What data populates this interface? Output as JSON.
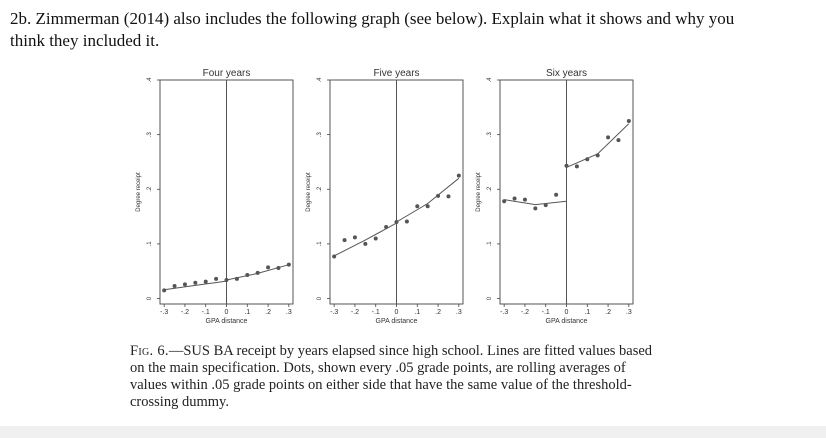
{
  "question": {
    "text": "2b. Zimmerman (2014) also includes the following graph (see below). Explain what it shows and why you think they included it."
  },
  "caption": {
    "label": "Fig. 6.",
    "text": "—SUS BA receipt by years elapsed since high school. Lines are fitted values based on the main specification. Dots, shown every .05 grade points, are rolling averages of values within .05 grade points on either side that have the same value of the threshold-crossing dummy."
  },
  "chart_data": [
    {
      "type": "scatter",
      "title": "Four years",
      "xlabel": "GPA distance",
      "ylabel": "Degree receipt",
      "xticks": [
        "-.3",
        "-.2",
        "-.1",
        "0",
        ".1",
        ".2",
        ".3"
      ],
      "yticks": [
        "0",
        ".1",
        ".2",
        ".3",
        ".4"
      ],
      "xlim": [
        -0.32,
        0.32
      ],
      "ylim": [
        -0.01,
        0.4
      ],
      "threshold": 0,
      "points": [
        {
          "x": -0.3,
          "y": 0.015
        },
        {
          "x": -0.25,
          "y": 0.023
        },
        {
          "x": -0.2,
          "y": 0.026
        },
        {
          "x": -0.15,
          "y": 0.029
        },
        {
          "x": -0.1,
          "y": 0.031
        },
        {
          "x": -0.05,
          "y": 0.036
        },
        {
          "x": 0.0,
          "y": 0.034
        },
        {
          "x": 0.05,
          "y": 0.036
        },
        {
          "x": 0.1,
          "y": 0.043
        },
        {
          "x": 0.15,
          "y": 0.047
        },
        {
          "x": 0.2,
          "y": 0.057
        },
        {
          "x": 0.25,
          "y": 0.056
        },
        {
          "x": 0.3,
          "y": 0.062
        }
      ],
      "fit_left": [
        {
          "x": -0.3,
          "y": 0.016
        },
        {
          "x": -0.15,
          "y": 0.024
        },
        {
          "x": 0.0,
          "y": 0.032
        }
      ],
      "fit_right": [
        {
          "x": 0.0,
          "y": 0.034
        },
        {
          "x": 0.15,
          "y": 0.046
        },
        {
          "x": 0.3,
          "y": 0.062
        }
      ]
    },
    {
      "type": "scatter",
      "title": "Five years",
      "xlabel": "GPA distance",
      "ylabel": "Degree receipt",
      "xticks": [
        "-.3",
        "-.2",
        "-.1",
        "0",
        ".1",
        ".2",
        ".3"
      ],
      "yticks": [
        "0",
        ".1",
        ".2",
        ".3",
        ".4"
      ],
      "xlim": [
        -0.32,
        0.32
      ],
      "ylim": [
        -0.01,
        0.4
      ],
      "threshold": 0,
      "points": [
        {
          "x": -0.3,
          "y": 0.077
        },
        {
          "x": -0.25,
          "y": 0.107
        },
        {
          "x": -0.2,
          "y": 0.112
        },
        {
          "x": -0.15,
          "y": 0.1
        },
        {
          "x": -0.1,
          "y": 0.11
        },
        {
          "x": -0.05,
          "y": 0.131
        },
        {
          "x": 0.0,
          "y": 0.14
        },
        {
          "x": 0.05,
          "y": 0.141
        },
        {
          "x": 0.1,
          "y": 0.169
        },
        {
          "x": 0.15,
          "y": 0.169
        },
        {
          "x": 0.2,
          "y": 0.188
        },
        {
          "x": 0.25,
          "y": 0.187
        },
        {
          "x": 0.3,
          "y": 0.225
        }
      ],
      "fit_left": [
        {
          "x": -0.3,
          "y": 0.078
        },
        {
          "x": -0.15,
          "y": 0.107
        },
        {
          "x": 0.0,
          "y": 0.138
        }
      ],
      "fit_right": [
        {
          "x": 0.0,
          "y": 0.14
        },
        {
          "x": 0.15,
          "y": 0.174
        },
        {
          "x": 0.3,
          "y": 0.22
        }
      ]
    },
    {
      "type": "scatter",
      "title": "Six years",
      "xlabel": "GPA distance",
      "ylabel": "Degree receipt",
      "xticks": [
        "-.3",
        "-.2",
        "-.1",
        "0",
        ".1",
        ".2",
        ".3"
      ],
      "yticks": [
        "0",
        ".1",
        ".2",
        ".3",
        ".4"
      ],
      "xlim": [
        -0.32,
        0.32
      ],
      "ylim": [
        -0.01,
        0.4
      ],
      "threshold": 0,
      "points": [
        {
          "x": -0.3,
          "y": 0.178
        },
        {
          "x": -0.25,
          "y": 0.183
        },
        {
          "x": -0.2,
          "y": 0.181
        },
        {
          "x": -0.15,
          "y": 0.165
        },
        {
          "x": -0.1,
          "y": 0.171
        },
        {
          "x": -0.05,
          "y": 0.19
        },
        {
          "x": 0.0,
          "y": 0.243
        },
        {
          "x": 0.05,
          "y": 0.242
        },
        {
          "x": 0.1,
          "y": 0.255
        },
        {
          "x": 0.15,
          "y": 0.262
        },
        {
          "x": 0.2,
          "y": 0.295
        },
        {
          "x": 0.25,
          "y": 0.29
        },
        {
          "x": 0.3,
          "y": 0.325
        }
      ],
      "fit_left": [
        {
          "x": -0.3,
          "y": 0.181
        },
        {
          "x": -0.15,
          "y": 0.172
        },
        {
          "x": 0.0,
          "y": 0.178
        }
      ],
      "fit_right": [
        {
          "x": 0.0,
          "y": 0.24
        },
        {
          "x": 0.15,
          "y": 0.265
        },
        {
          "x": 0.3,
          "y": 0.32
        }
      ]
    }
  ]
}
